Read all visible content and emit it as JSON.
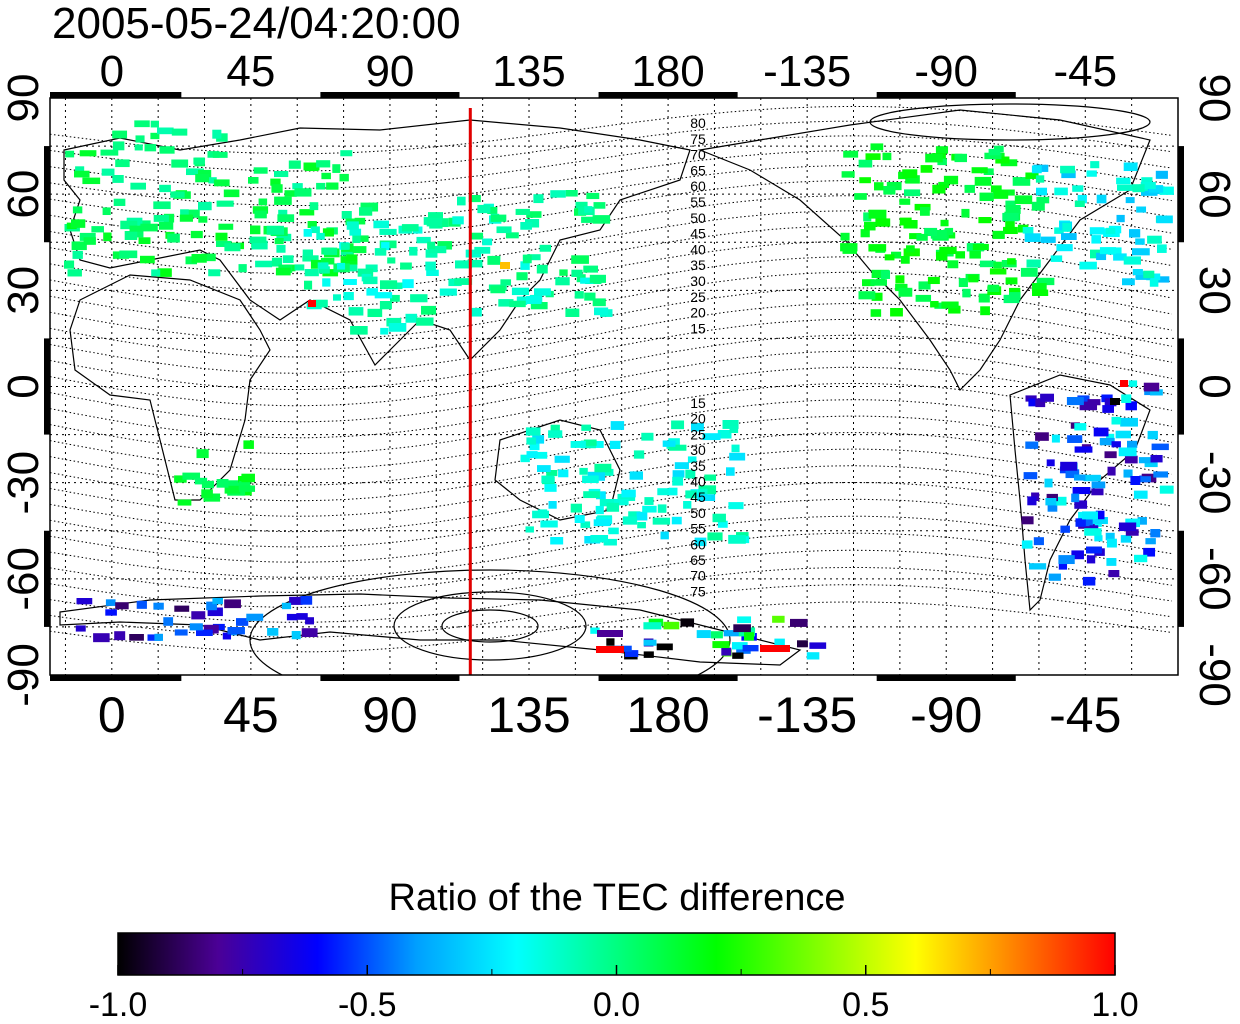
{
  "title": "2005-05-24/04:20:00",
  "map": {
    "lon_ticks": [
      "0",
      "45",
      "90",
      "135",
      "180",
      "-135",
      "-90",
      "-45"
    ],
    "lat_ticks": [
      "90",
      "60",
      "30",
      "0",
      "-30",
      "-60",
      "-90"
    ],
    "lon_tick_values": [
      0,
      45,
      90,
      135,
      180,
      225,
      270,
      315
    ],
    "lat_tick_values": [
      90,
      60,
      30,
      0,
      -30,
      -60,
      -90
    ],
    "lon_range": [
      -20,
      345
    ],
    "lat_range": [
      -90,
      90
    ],
    "grid": "on (dotted, every 15 degrees)",
    "marker_longitude": 116,
    "marker_color": "#e00000",
    "contour_labels_north": [
      "80",
      "75",
      "70",
      "65",
      "60",
      "55",
      "50",
      "45",
      "40",
      "35",
      "30",
      "25",
      "20",
      "15"
    ],
    "contour_labels_south": [
      "15",
      "20",
      "25",
      "30",
      "35",
      "40",
      "45",
      "50",
      "55",
      "60",
      "65",
      "70",
      "75"
    ],
    "land_outline_color": "#000000"
  },
  "colorbar": {
    "title": "Ratio of the TEC difference",
    "tick_labels": [
      "-1.0",
      "-0.5",
      "0.0",
      "0.5",
      "1.0"
    ],
    "tick_values": [
      -1.0,
      -0.5,
      0.0,
      0.5,
      1.0
    ],
    "range": [
      -1.0,
      1.0
    ],
    "colors": [
      "#000000",
      "#4b0096",
      "#0000ff",
      "#00a0ff",
      "#00ffff",
      "#00ff80",
      "#00ff00",
      "#80ff00",
      "#ffff00",
      "#ff8000",
      "#ff0000"
    ]
  }
}
